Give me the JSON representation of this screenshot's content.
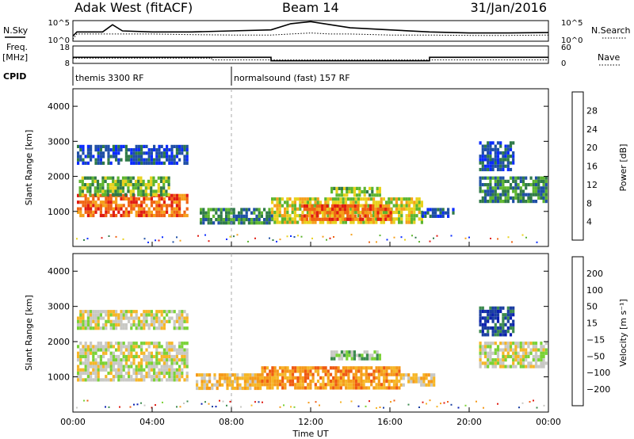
{
  "header": {
    "title": "Adak West (fitACF)",
    "beam": "Beam 14",
    "date": "31/Jan/2016"
  },
  "side_labels": {
    "nsky": "N.Sky",
    "freq": "Freq.",
    "freq_unit": "[MHz]",
    "cpid": "CPID",
    "nsearch": "N.Search",
    "nave": "Nave"
  },
  "cpid_segments": [
    {
      "label": "themis 3300 RF",
      "start_hour": 0
    },
    {
      "label": "normalsound (fast) 157 RF",
      "start_hour": 8
    }
  ],
  "colors": {
    "power": [
      "#0a2bff",
      "#1f4fa6",
      "#2f7a48",
      "#5db52f",
      "#e8d21d",
      "#f5a01a",
      "#f06414",
      "#e01b12"
    ],
    "velocity": [
      "#e01b12",
      "#ef5a12",
      "#f59a1a",
      "#f6b627",
      "#c8c8c4",
      "#7ad236",
      "#3c8a4e",
      "#1a3ea0",
      "#0a1fb0"
    ],
    "gray": "#c8c8c4"
  },
  "chart_data": [
    {
      "type": "line",
      "name": "noise",
      "left_ticks": [
        "10^5",
        "10^0"
      ],
      "right_ticks": [
        "10^5",
        "10^0"
      ],
      "left_label": "N.Sky",
      "right_label": "N.Search",
      "x": [
        0,
        0.2,
        1.5,
        2,
        2.5,
        4,
        6,
        8,
        10,
        11,
        12,
        13,
        14,
        16,
        18,
        20,
        22,
        24
      ],
      "nsky": [
        0.25,
        0.45,
        0.45,
        0.8,
        0.5,
        0.45,
        0.45,
        0.5,
        0.55,
        0.85,
        0.95,
        0.8,
        0.65,
        0.55,
        0.45,
        0.4,
        0.4,
        0.42
      ],
      "nsearch": [
        0.1,
        0.35,
        0.35,
        0.35,
        0.35,
        0.35,
        0.32,
        0.3,
        0.3,
        0.35,
        0.4,
        0.35,
        0.35,
        0.3,
        0.3,
        0.28,
        0.28,
        0.3
      ]
    },
    {
      "type": "line",
      "name": "frequency",
      "left_ticks": [
        "18",
        "8"
      ],
      "right_ticks": [
        "60",
        "0"
      ],
      "freq_steps": [
        {
          "start": 0,
          "end": 10,
          "value": 11.5
        },
        {
          "start": 10,
          "end": 18,
          "value": 9.5
        },
        {
          "start": 18,
          "end": 24,
          "value": 11.5
        }
      ],
      "nave_dotted": [
        {
          "start": 0,
          "end": 7,
          "value": 18
        },
        {
          "start": 7,
          "end": 24,
          "value": 12
        }
      ]
    },
    {
      "type": "heatmap",
      "name": "power",
      "ylabel": "Slant Range [km]",
      "x_range_hours": [
        0,
        24
      ],
      "ylim": [
        0,
        4500
      ],
      "yticks": [
        1000,
        2000,
        3000,
        4000
      ],
      "colorbar_label": "Power [dB]",
      "colorbar_ticks": [
        "28",
        "24",
        "20",
        "16",
        "12",
        "8",
        "4"
      ],
      "patches": [
        {
          "t0": 0.2,
          "t1": 5.8,
          "r0": 900,
          "r1": 1500,
          "level": 6
        },
        {
          "t0": 0.3,
          "t1": 4.8,
          "r0": 1500,
          "r1": 2000,
          "level": 3
        },
        {
          "t0": 0.2,
          "t1": 5.8,
          "r0": 2400,
          "r1": 2900,
          "level": 1
        },
        {
          "t0": 6.4,
          "t1": 10.0,
          "r0": 700,
          "r1": 1100,
          "level": 2
        },
        {
          "t0": 10.0,
          "t1": 17.6,
          "r0": 700,
          "r1": 1400,
          "level": 4
        },
        {
          "t0": 11.5,
          "t1": 16.0,
          "r0": 800,
          "r1": 1200,
          "level": 6
        },
        {
          "t0": 13.0,
          "t1": 15.5,
          "r0": 1500,
          "r1": 1700,
          "level": 3
        },
        {
          "t0": 17.6,
          "t1": 19.2,
          "r0": 900,
          "r1": 1100,
          "level": 1
        },
        {
          "t0": 20.5,
          "t1": 23.9,
          "r0": 1300,
          "r1": 2000,
          "level": 2
        },
        {
          "t0": 20.5,
          "t1": 22.2,
          "r0": 2200,
          "r1": 3000,
          "level": 1
        }
      ]
    },
    {
      "type": "heatmap",
      "name": "velocity",
      "xlabel": "Time UT",
      "ylabel": "Slant Range [km]",
      "x_range_hours": [
        0,
        24
      ],
      "ylim": [
        0,
        4500
      ],
      "yticks": [
        1000,
        2000,
        3000,
        4000
      ],
      "xticks": [
        "00:00",
        "04:00",
        "08:00",
        "12:00",
        "16:00",
        "20:00",
        "00:00"
      ],
      "colorbar_label": "Velocity [m s⁻¹]",
      "colorbar_ticks": [
        "200",
        "100",
        "50",
        "15",
        "−15",
        "−50",
        "−100",
        "−200"
      ],
      "patches": [
        {
          "t0": 0.2,
          "t1": 5.8,
          "r0": 900,
          "r1": 2000,
          "level": 4
        },
        {
          "t0": 0.2,
          "t1": 5.8,
          "r0": 2400,
          "r1": 2900,
          "level": 4
        },
        {
          "t0": 6.2,
          "t1": 9.5,
          "r0": 700,
          "r1": 1100,
          "level": 3
        },
        {
          "t0": 9.5,
          "t1": 16.5,
          "r0": 700,
          "r1": 1300,
          "level": 2
        },
        {
          "t0": 16.5,
          "t1": 18.2,
          "r0": 800,
          "r1": 1100,
          "level": 3
        },
        {
          "t0": 13.0,
          "t1": 15.5,
          "r0": 1550,
          "r1": 1750,
          "level": 5
        },
        {
          "t0": 20.5,
          "t1": 23.9,
          "r0": 1300,
          "r1": 2000,
          "level": 4
        },
        {
          "t0": 20.5,
          "t1": 22.2,
          "r0": 2200,
          "r1": 3000,
          "level": 7
        }
      ]
    }
  ]
}
